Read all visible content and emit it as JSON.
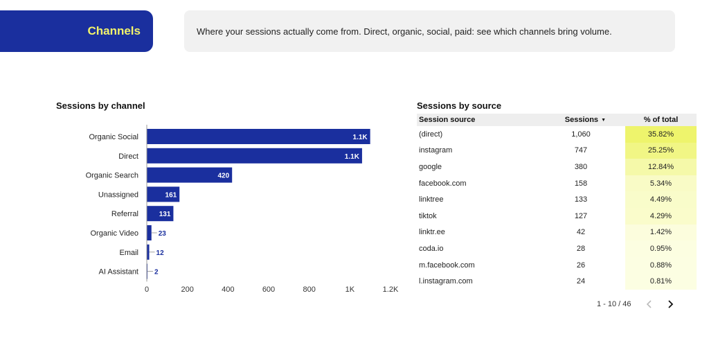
{
  "header": {
    "title": "Channels",
    "description": "Where your sessions actually come from. Direct, organic, social, paid: see which channels bring volume."
  },
  "colors": {
    "brand": "#1a2f9e",
    "accent_text": "#f2f36b",
    "bar": "#1a2f9e",
    "heat_high": "#eef46c",
    "heat_low": "#fefff0"
  },
  "bar_chart_title": "Sessions by channel",
  "chart_data": {
    "type": "bar",
    "orientation": "horizontal",
    "title": "Sessions by channel",
    "categories": [
      "Organic Social",
      "Direct",
      "Organic Search",
      "Unassigned",
      "Referral",
      "Organic Video",
      "Email",
      "AI Assistant"
    ],
    "values": [
      1100,
      1060,
      420,
      161,
      131,
      23,
      12,
      2
    ],
    "data_labels": [
      "1.1K",
      "1.1K",
      "420",
      "161",
      "131",
      "23",
      "12",
      "2"
    ],
    "xlim": [
      0,
      1200
    ],
    "xticks": [
      0,
      200,
      400,
      600,
      800,
      1000,
      1200
    ],
    "xtick_labels": [
      "0",
      "200",
      "400",
      "600",
      "800",
      "1K",
      "1.2K"
    ],
    "grid": false
  },
  "table": {
    "title": "Sessions by source",
    "columns": [
      "Session source",
      "Sessions",
      "% of total"
    ],
    "rows": [
      {
        "source": "(direct)",
        "sessions": "1,060",
        "pct": "35.82%",
        "pct_value": 35.82
      },
      {
        "source": "instagram",
        "sessions": "747",
        "pct": "25.25%",
        "pct_value": 25.25
      },
      {
        "source": "google",
        "sessions": "380",
        "pct": "12.84%",
        "pct_value": 12.84
      },
      {
        "source": "facebook.com",
        "sessions": "158",
        "pct": "5.34%",
        "pct_value": 5.34
      },
      {
        "source": "linktree",
        "sessions": "133",
        "pct": "4.49%",
        "pct_value": 4.49
      },
      {
        "source": "tiktok",
        "sessions": "127",
        "pct": "4.29%",
        "pct_value": 4.29
      },
      {
        "source": "linktr.ee",
        "sessions": "42",
        "pct": "1.42%",
        "pct_value": 1.42
      },
      {
        "source": "coda.io",
        "sessions": "28",
        "pct": "0.95%",
        "pct_value": 0.95
      },
      {
        "source": "m.facebook.com",
        "sessions": "26",
        "pct": "0.88%",
        "pct_value": 0.88
      },
      {
        "source": "l.instagram.com",
        "sessions": "24",
        "pct": "0.81%",
        "pct_value": 0.81
      }
    ],
    "pagination": "1 - 10 / 46",
    "sort_icon": "sort-desc-icon",
    "prev_icon": "chevron-left-icon",
    "next_icon": "chevron-right-icon"
  }
}
